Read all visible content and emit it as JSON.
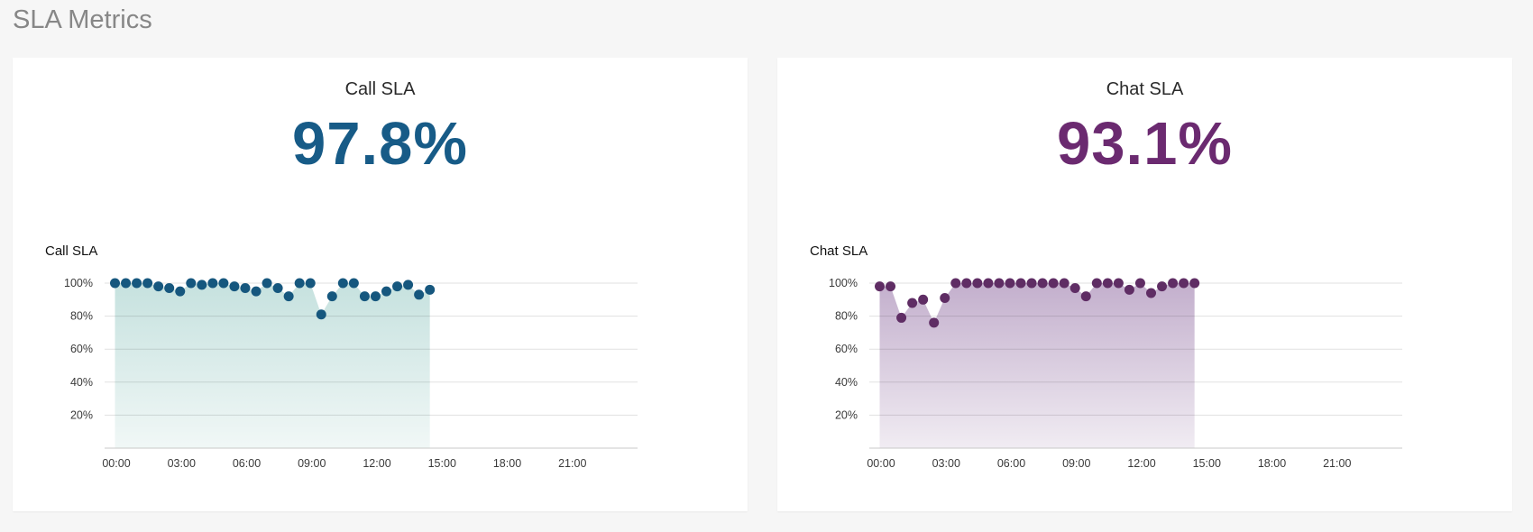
{
  "page": {
    "title": "SLA Metrics",
    "background_color": "#f6f6f6",
    "card_background_color": "#ffffff"
  },
  "cards": [
    {
      "title": "Call SLA",
      "value": "97.8%",
      "value_color": "#175b87"
    },
    {
      "title": "Chat SLA",
      "value": "93.1%",
      "value_color": "#6b2a70"
    }
  ],
  "chart_data": [
    {
      "type": "area",
      "title": "Call SLA",
      "series_name": "Call SLA",
      "x_tick_labels": [
        "00:00",
        "03:00",
        "06:00",
        "09:00",
        "12:00",
        "15:00",
        "18:00",
        "21:00"
      ],
      "y_tick_labels": [
        "100%",
        "80%",
        "60%",
        "40%",
        "20%"
      ],
      "y_tick_values": [
        100,
        80,
        60,
        40,
        20
      ],
      "ylim": [
        0,
        100
      ],
      "x_axis_span_hours": [
        0,
        24
      ],
      "interval_minutes": 30,
      "grid": true,
      "legend": "none",
      "times": [
        "00:00",
        "00:30",
        "01:00",
        "01:30",
        "02:00",
        "02:30",
        "03:00",
        "03:30",
        "04:00",
        "04:30",
        "05:00",
        "05:30",
        "06:00",
        "06:30",
        "07:00",
        "07:30",
        "08:00",
        "08:30",
        "09:00",
        "09:30",
        "10:00",
        "10:30",
        "11:00",
        "11:30",
        "12:00",
        "12:30",
        "13:00",
        "13:30",
        "14:00",
        "14:30"
      ],
      "values": [
        100,
        100,
        100,
        100,
        98,
        97,
        95,
        100,
        99,
        100,
        100,
        98,
        97,
        95,
        100,
        97,
        92,
        100,
        100,
        81,
        92,
        100,
        100,
        92,
        92,
        95,
        98,
        99,
        93,
        96
      ],
      "colors": {
        "dot": "#16577e",
        "fill_top": "#c3e0dd",
        "fill_bottom": "#f0f7f6",
        "gridline": "#dcdcdc",
        "axis_line": "#c8c8c8"
      }
    },
    {
      "type": "area",
      "title": "Chat SLA",
      "series_name": "Chat SLA",
      "x_tick_labels": [
        "00:00",
        "03:00",
        "06:00",
        "09:00",
        "12:00",
        "15:00",
        "18:00",
        "21:00"
      ],
      "y_tick_labels": [
        "100%",
        "80%",
        "60%",
        "40%",
        "20%"
      ],
      "y_tick_values": [
        100,
        80,
        60,
        40,
        20
      ],
      "ylim": [
        0,
        100
      ],
      "x_axis_span_hours": [
        0,
        24
      ],
      "interval_minutes": 30,
      "grid": true,
      "legend": "none",
      "times": [
        "00:00",
        "00:30",
        "01:00",
        "01:30",
        "02:00",
        "02:30",
        "03:00",
        "03:30",
        "04:00",
        "04:30",
        "05:00",
        "05:30",
        "06:00",
        "06:30",
        "07:00",
        "07:30",
        "08:00",
        "08:30",
        "09:00",
        "09:30",
        "10:00",
        "10:30",
        "11:00",
        "11:30",
        "12:00",
        "12:30",
        "13:00",
        "13:30",
        "14:00",
        "14:30"
      ],
      "values": [
        98,
        98,
        79,
        88,
        90,
        76,
        91,
        100,
        100,
        100,
        100,
        100,
        100,
        100,
        100,
        100,
        100,
        100,
        97,
        92,
        100,
        100,
        100,
        96,
        100,
        94,
        98,
        100,
        100,
        100
      ],
      "colors": {
        "dot": "#5f2d64",
        "fill_top": "#c0abca",
        "fill_bottom": "#f0ebf2",
        "gridline": "#dcdcdc",
        "axis_line": "#c8c8c8"
      }
    }
  ]
}
